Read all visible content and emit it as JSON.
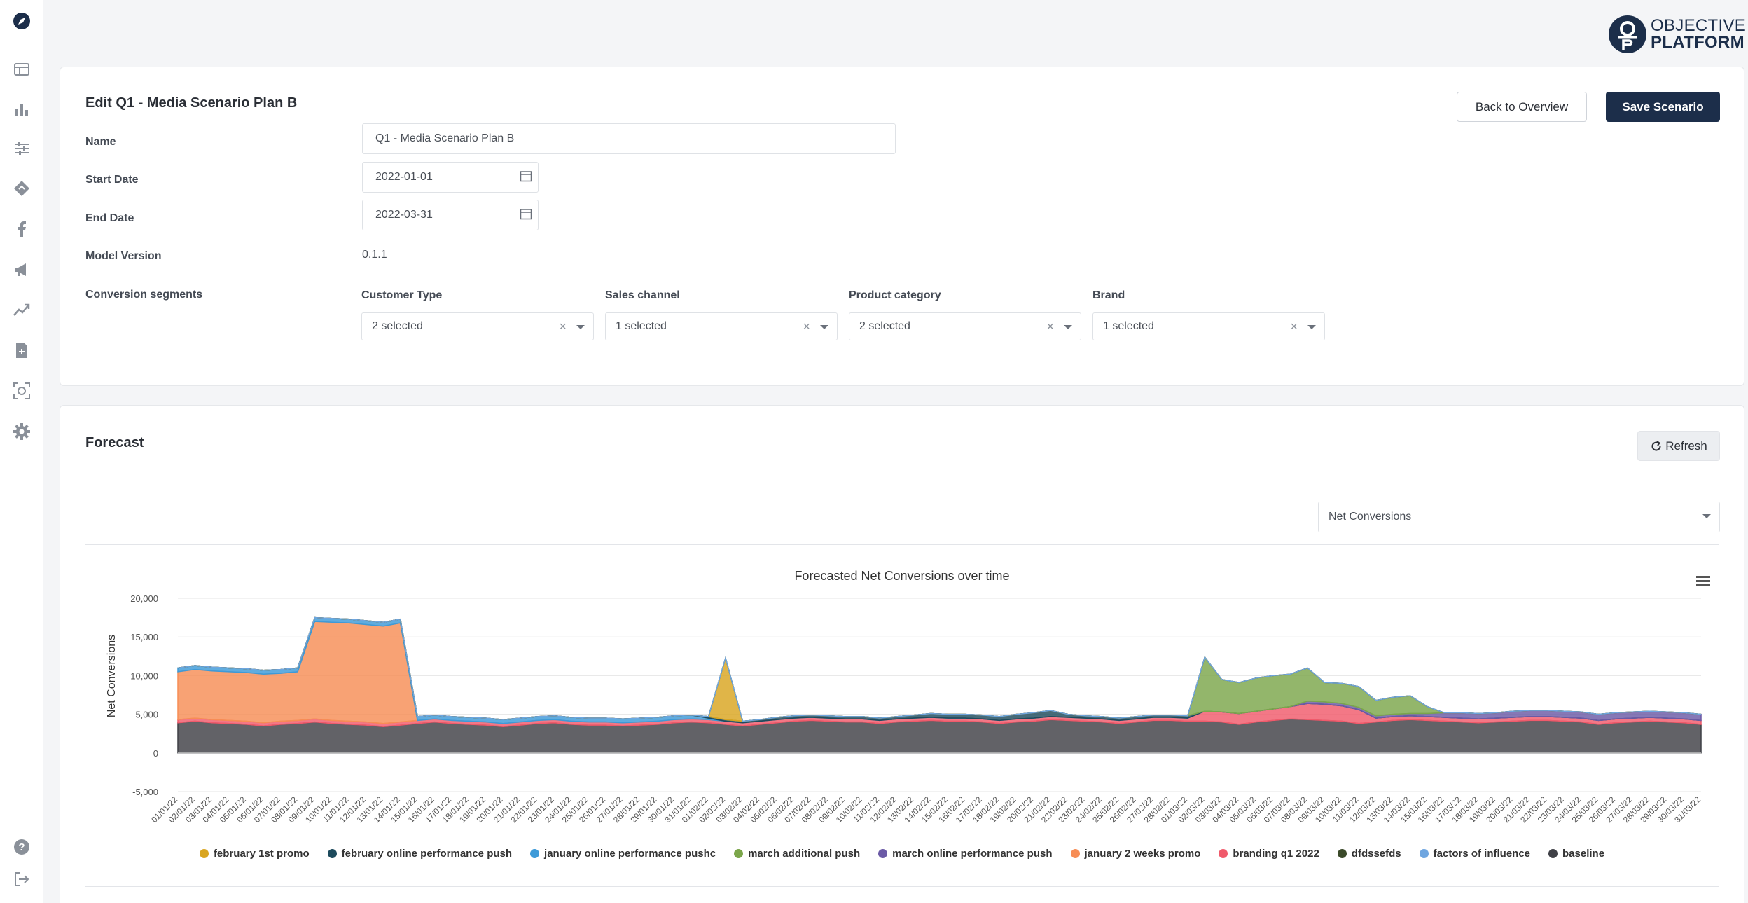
{
  "logo": {
    "line1": "OBJECTIVE",
    "line2": "PLATFORM"
  },
  "sidebar": {
    "items": [
      {
        "name": "compass-icon"
      },
      {
        "name": "table-icon"
      },
      {
        "name": "bar-chart-icon"
      },
      {
        "name": "sliders-icon"
      },
      {
        "name": "diamond-icon"
      },
      {
        "name": "facebook-icon"
      },
      {
        "name": "megaphone-icon"
      },
      {
        "name": "trend-icon"
      },
      {
        "name": "document-plus-icon"
      },
      {
        "name": "target-scan-icon"
      },
      {
        "name": "gear-icon"
      },
      {
        "name": "help-icon"
      },
      {
        "name": "logout-icon"
      }
    ]
  },
  "edit": {
    "title": "Edit Q1 - Media Scenario Plan B",
    "back_label": "Back to Overview",
    "save_label": "Save Scenario",
    "name_label": "Name",
    "name_value": "Q1 - Media Scenario Plan B",
    "start_label": "Start Date",
    "start_value": "2022-01-01",
    "end_label": "End Date",
    "end_value": "2022-03-31",
    "model_label": "Model Version",
    "model_value": "0.1.1",
    "segments_label": "Conversion segments",
    "segments": [
      {
        "label": "Customer Type",
        "value": "2 selected"
      },
      {
        "label": "Sales channel",
        "value": "1 selected"
      },
      {
        "label": "Product category",
        "value": "2 selected"
      },
      {
        "label": "Brand",
        "value": "1 selected"
      }
    ]
  },
  "forecast": {
    "title": "Forecast",
    "refresh_label": "Refresh",
    "metric_value": "Net Conversions"
  },
  "chart_data": {
    "type": "area",
    "title": "Forecasted Net Conversions over time",
    "ylabel": "Net Conversions",
    "xlabel": "",
    "ylim": [
      -5000,
      20000
    ],
    "yticks": [
      "20,000",
      "15,000",
      "10,000",
      "5,000",
      "0",
      "-5,000"
    ],
    "ytick_values": [
      20000,
      15000,
      10000,
      5000,
      0,
      -5000
    ],
    "x": [
      "01/01/22",
      "02/01/22",
      "03/01/22",
      "04/01/22",
      "05/01/22",
      "06/01/22",
      "07/01/22",
      "08/01/22",
      "09/01/22",
      "10/01/22",
      "11/01/22",
      "12/01/22",
      "13/01/22",
      "14/01/22",
      "15/01/22",
      "16/01/22",
      "17/01/22",
      "18/01/22",
      "19/01/22",
      "20/01/22",
      "21/01/22",
      "22/01/22",
      "23/01/22",
      "24/01/22",
      "25/01/22",
      "26/01/22",
      "27/01/22",
      "28/01/22",
      "29/01/22",
      "30/01/22",
      "31/01/22",
      "01/02/22",
      "02/02/22",
      "03/02/22",
      "04/02/22",
      "05/02/22",
      "06/02/22",
      "07/02/22",
      "08/02/22",
      "09/02/22",
      "10/02/22",
      "11/02/22",
      "12/02/22",
      "13/02/22",
      "14/02/22",
      "15/02/22",
      "16/02/22",
      "17/02/22",
      "18/02/22",
      "19/02/22",
      "20/02/22",
      "21/02/22",
      "22/02/22",
      "23/02/22",
      "24/02/22",
      "25/02/22",
      "26/02/22",
      "27/02/22",
      "28/02/22",
      "01/03/22",
      "02/03/22",
      "03/03/22",
      "04/03/22",
      "05/03/22",
      "06/03/22",
      "07/03/22",
      "08/03/22",
      "09/03/22",
      "10/03/22",
      "11/03/22",
      "12/03/22",
      "13/03/22",
      "14/03/22",
      "15/03/22",
      "16/03/22",
      "17/03/22",
      "18/03/22",
      "19/03/22",
      "20/03/22",
      "21/03/22",
      "22/03/22",
      "23/03/22",
      "24/03/22",
      "25/03/22",
      "26/03/22",
      "27/03/22",
      "28/03/22",
      "29/03/22",
      "30/03/22",
      "31/03/22"
    ],
    "legend_position": "bottom",
    "series": [
      {
        "name": "february 1st promo",
        "color": "#d9a520"
      },
      {
        "name": "february online performance push",
        "color": "#1d4a5c"
      },
      {
        "name": "january online performance pushc",
        "color": "#3d9ad8"
      },
      {
        "name": "march additional push",
        "color": "#7ba64a"
      },
      {
        "name": "march online performance push",
        "color": "#6b5aa6"
      },
      {
        "name": "january 2 weeks promo",
        "color": "#f78d55"
      },
      {
        "name": "branding q1 2022",
        "color": "#f05a6b"
      },
      {
        "name": "dfdssefds",
        "color": "#3b4a2a"
      },
      {
        "name": "factors of influence",
        "color": "#6fa6e0"
      },
      {
        "name": "baseline",
        "color": "#3f4046"
      }
    ],
    "values": {
      "baseline": [
        3900,
        4100,
        3900,
        3800,
        3700,
        3500,
        3700,
        3800,
        4000,
        3800,
        3700,
        3600,
        3400,
        3600,
        3800,
        4000,
        3800,
        3700,
        3600,
        3400,
        3600,
        3800,
        3900,
        3700,
        3600,
        3600,
        3500,
        3600,
        3700,
        3900,
        4000,
        3900,
        3700,
        3500,
        3700,
        3900,
        4100,
        4200,
        4100,
        4000,
        4000,
        3800,
        4000,
        4100,
        4200,
        4100,
        4100,
        4000,
        3800,
        4000,
        4100,
        4300,
        4200,
        4100,
        4000,
        3800,
        4000,
        4200,
        4200,
        4100,
        4100,
        4000,
        3700,
        4000,
        4200,
        4400,
        4300,
        4200,
        4100,
        3800,
        4000,
        4200,
        4300,
        4200,
        4100,
        4000,
        3900,
        4000,
        4100,
        4200,
        4200,
        4100,
        4000,
        3700,
        3900,
        4000,
        4100,
        4000,
        3900,
        3700
      ],
      "branding q1 2022": [
        400,
        400,
        400,
        400,
        400,
        400,
        400,
        400,
        400,
        400,
        400,
        400,
        400,
        400,
        400,
        400,
        400,
        400,
        400,
        400,
        400,
        400,
        400,
        400,
        400,
        400,
        400,
        400,
        400,
        400,
        400,
        400,
        400,
        400,
        400,
        400,
        400,
        400,
        400,
        400,
        400,
        400,
        400,
        400,
        400,
        400,
        400,
        400,
        400,
        400,
        400,
        400,
        400,
        400,
        400,
        400,
        400,
        400,
        400,
        400,
        1300,
        1300,
        1400,
        1400,
        1500,
        1600,
        2100,
        2100,
        2000,
        1800,
        500,
        500,
        500,
        500,
        500,
        500,
        500,
        500,
        500,
        500,
        500,
        500,
        500,
        500,
        500,
        500,
        500,
        500,
        500,
        500
      ],
      "january 2 weeks promo": [
        6200,
        6300,
        6300,
        6300,
        6300,
        6300,
        6200,
        6300,
        12600,
        12700,
        12700,
        12600,
        12600,
        12800,
        0,
        0,
        0,
        0,
        0,
        0,
        0,
        0,
        0,
        0,
        0,
        0,
        0,
        0,
        0,
        0,
        0,
        0,
        0,
        0,
        0,
        0,
        0,
        0,
        0,
        0,
        0,
        0,
        0,
        0,
        0,
        0,
        0,
        0,
        0,
        0,
        0,
        0,
        0,
        0,
        0,
        0,
        0,
        0,
        0,
        0,
        0,
        0,
        0,
        0,
        0,
        0,
        0,
        0,
        0,
        0,
        0,
        0,
        0,
        0,
        0,
        0,
        0,
        0,
        0,
        0,
        0,
        0,
        0,
        0,
        0,
        0,
        0,
        0,
        0,
        0
      ],
      "january online performance pushc": [
        500,
        500,
        500,
        500,
        500,
        500,
        500,
        500,
        500,
        500,
        500,
        500,
        500,
        500,
        500,
        500,
        500,
        500,
        500,
        500,
        500,
        500,
        500,
        500,
        500,
        500,
        500,
        500,
        500,
        500,
        500,
        200,
        0,
        0,
        0,
        0,
        0,
        0,
        0,
        0,
        0,
        0,
        0,
        0,
        0,
        0,
        0,
        0,
        0,
        0,
        0,
        0,
        0,
        0,
        0,
        0,
        0,
        0,
        0,
        0,
        0,
        0,
        0,
        0,
        0,
        0,
        0,
        0,
        0,
        0,
        0,
        0,
        0,
        0,
        0,
        0,
        0,
        0,
        0,
        0,
        0,
        0,
        0,
        0,
        0,
        0,
        0,
        0,
        0,
        0
      ],
      "february 1st promo": [
        0,
        0,
        0,
        0,
        0,
        0,
        0,
        0,
        0,
        0,
        0,
        0,
        0,
        0,
        0,
        0,
        0,
        0,
        0,
        0,
        0,
        0,
        0,
        0,
        0,
        0,
        0,
        0,
        0,
        0,
        0,
        0,
        8000,
        0,
        0,
        0,
        0,
        0,
        0,
        0,
        0,
        0,
        0,
        0,
        0,
        0,
        0,
        0,
        0,
        0,
        0,
        0,
        0,
        0,
        0,
        0,
        0,
        0,
        0,
        0,
        0,
        0,
        0,
        0,
        0,
        0,
        0,
        0,
        0,
        0,
        0,
        0,
        0,
        0,
        0,
        0,
        0,
        0,
        0,
        0,
        0,
        0,
        0,
        0,
        0,
        0,
        0,
        0,
        0,
        0
      ],
      "february online performance push": [
        0,
        0,
        0,
        0,
        0,
        0,
        0,
        0,
        0,
        0,
        0,
        0,
        0,
        0,
        0,
        0,
        0,
        0,
        0,
        0,
        0,
        0,
        0,
        0,
        0,
        0,
        0,
        0,
        0,
        0,
        0,
        200,
        200,
        200,
        200,
        300,
        300,
        300,
        300,
        300,
        300,
        300,
        300,
        400,
        500,
        500,
        500,
        500,
        500,
        600,
        700,
        800,
        400,
        300,
        300,
        300,
        300,
        300,
        300,
        300,
        0,
        0,
        0,
        0,
        0,
        0,
        0,
        0,
        0,
        0,
        0,
        0,
        0,
        0,
        0,
        0,
        0,
        0,
        0,
        0,
        0,
        0,
        0,
        0,
        0,
        0,
        0,
        0,
        0,
        0
      ],
      "march additional push": [
        0,
        0,
        0,
        0,
        0,
        0,
        0,
        0,
        0,
        0,
        0,
        0,
        0,
        0,
        0,
        0,
        0,
        0,
        0,
        0,
        0,
        0,
        0,
        0,
        0,
        0,
        0,
        0,
        0,
        0,
        0,
        0,
        0,
        0,
        0,
        0,
        0,
        0,
        0,
        0,
        0,
        0,
        0,
        0,
        0,
        0,
        0,
        0,
        0,
        0,
        0,
        0,
        0,
        0,
        0,
        0,
        0,
        0,
        0,
        0,
        7000,
        4200,
        4000,
        4300,
        4300,
        4200,
        4300,
        2500,
        2600,
        2700,
        2000,
        2200,
        2300,
        900,
        0,
        0,
        0,
        0,
        0,
        0,
        0,
        0,
        0,
        0,
        0,
        0,
        0,
        0,
        0,
        0
      ],
      "march online performance push": [
        0,
        0,
        0,
        0,
        0,
        0,
        0,
        0,
        0,
        0,
        0,
        0,
        0,
        0,
        0,
        0,
        0,
        0,
        0,
        0,
        0,
        0,
        0,
        0,
        0,
        0,
        0,
        0,
        0,
        0,
        0,
        0,
        0,
        0,
        0,
        0,
        0,
        0,
        0,
        0,
        0,
        0,
        0,
        0,
        0,
        0,
        0,
        0,
        0,
        0,
        0,
        0,
        0,
        0,
        0,
        0,
        0,
        0,
        0,
        0,
        0,
        0,
        0,
        0,
        0,
        0,
        300,
        300,
        300,
        300,
        300,
        300,
        300,
        400,
        600,
        700,
        700,
        700,
        800,
        800,
        800,
        800,
        800,
        800,
        800,
        800,
        800,
        800,
        800,
        800
      ],
      "dfdssefds": [
        0,
        0,
        0,
        0,
        0,
        0,
        0,
        0,
        0,
        0,
        0,
        0,
        0,
        0,
        0,
        0,
        0,
        0,
        0,
        0,
        0,
        0,
        0,
        0,
        0,
        0,
        0,
        0,
        0,
        0,
        0,
        0,
        0,
        0,
        0,
        0,
        0,
        0,
        0,
        0,
        0,
        0,
        0,
        0,
        0,
        0,
        0,
        0,
        0,
        0,
        0,
        0,
        0,
        0,
        0,
        0,
        0,
        0,
        0,
        0,
        0,
        0,
        0,
        0,
        0,
        0,
        0,
        0,
        0,
        0,
        0,
        0,
        0,
        0,
        0,
        0,
        0,
        0,
        0,
        0,
        0,
        0,
        0,
        0,
        0,
        0,
        0,
        0,
        0,
        0
      ],
      "factors of influence": [
        0,
        0,
        0,
        0,
        0,
        0,
        0,
        0,
        0,
        0,
        0,
        0,
        0,
        0,
        0,
        0,
        0,
        0,
        0,
        0,
        0,
        0,
        0,
        0,
        0,
        0,
        0,
        0,
        0,
        0,
        0,
        0,
        0,
        0,
        0,
        0,
        0,
        0,
        0,
        0,
        0,
        0,
        0,
        0,
        0,
        0,
        0,
        0,
        0,
        0,
        0,
        0,
        0,
        0,
        0,
        0,
        0,
        0,
        0,
        0,
        0,
        0,
        0,
        0,
        0,
        0,
        0,
        0,
        0,
        0,
        0,
        0,
        0,
        0,
        0,
        0,
        0,
        0,
        0,
        0,
        0,
        0,
        0,
        0,
        0,
        0,
        0,
        0,
        0,
        0
      ]
    }
  }
}
